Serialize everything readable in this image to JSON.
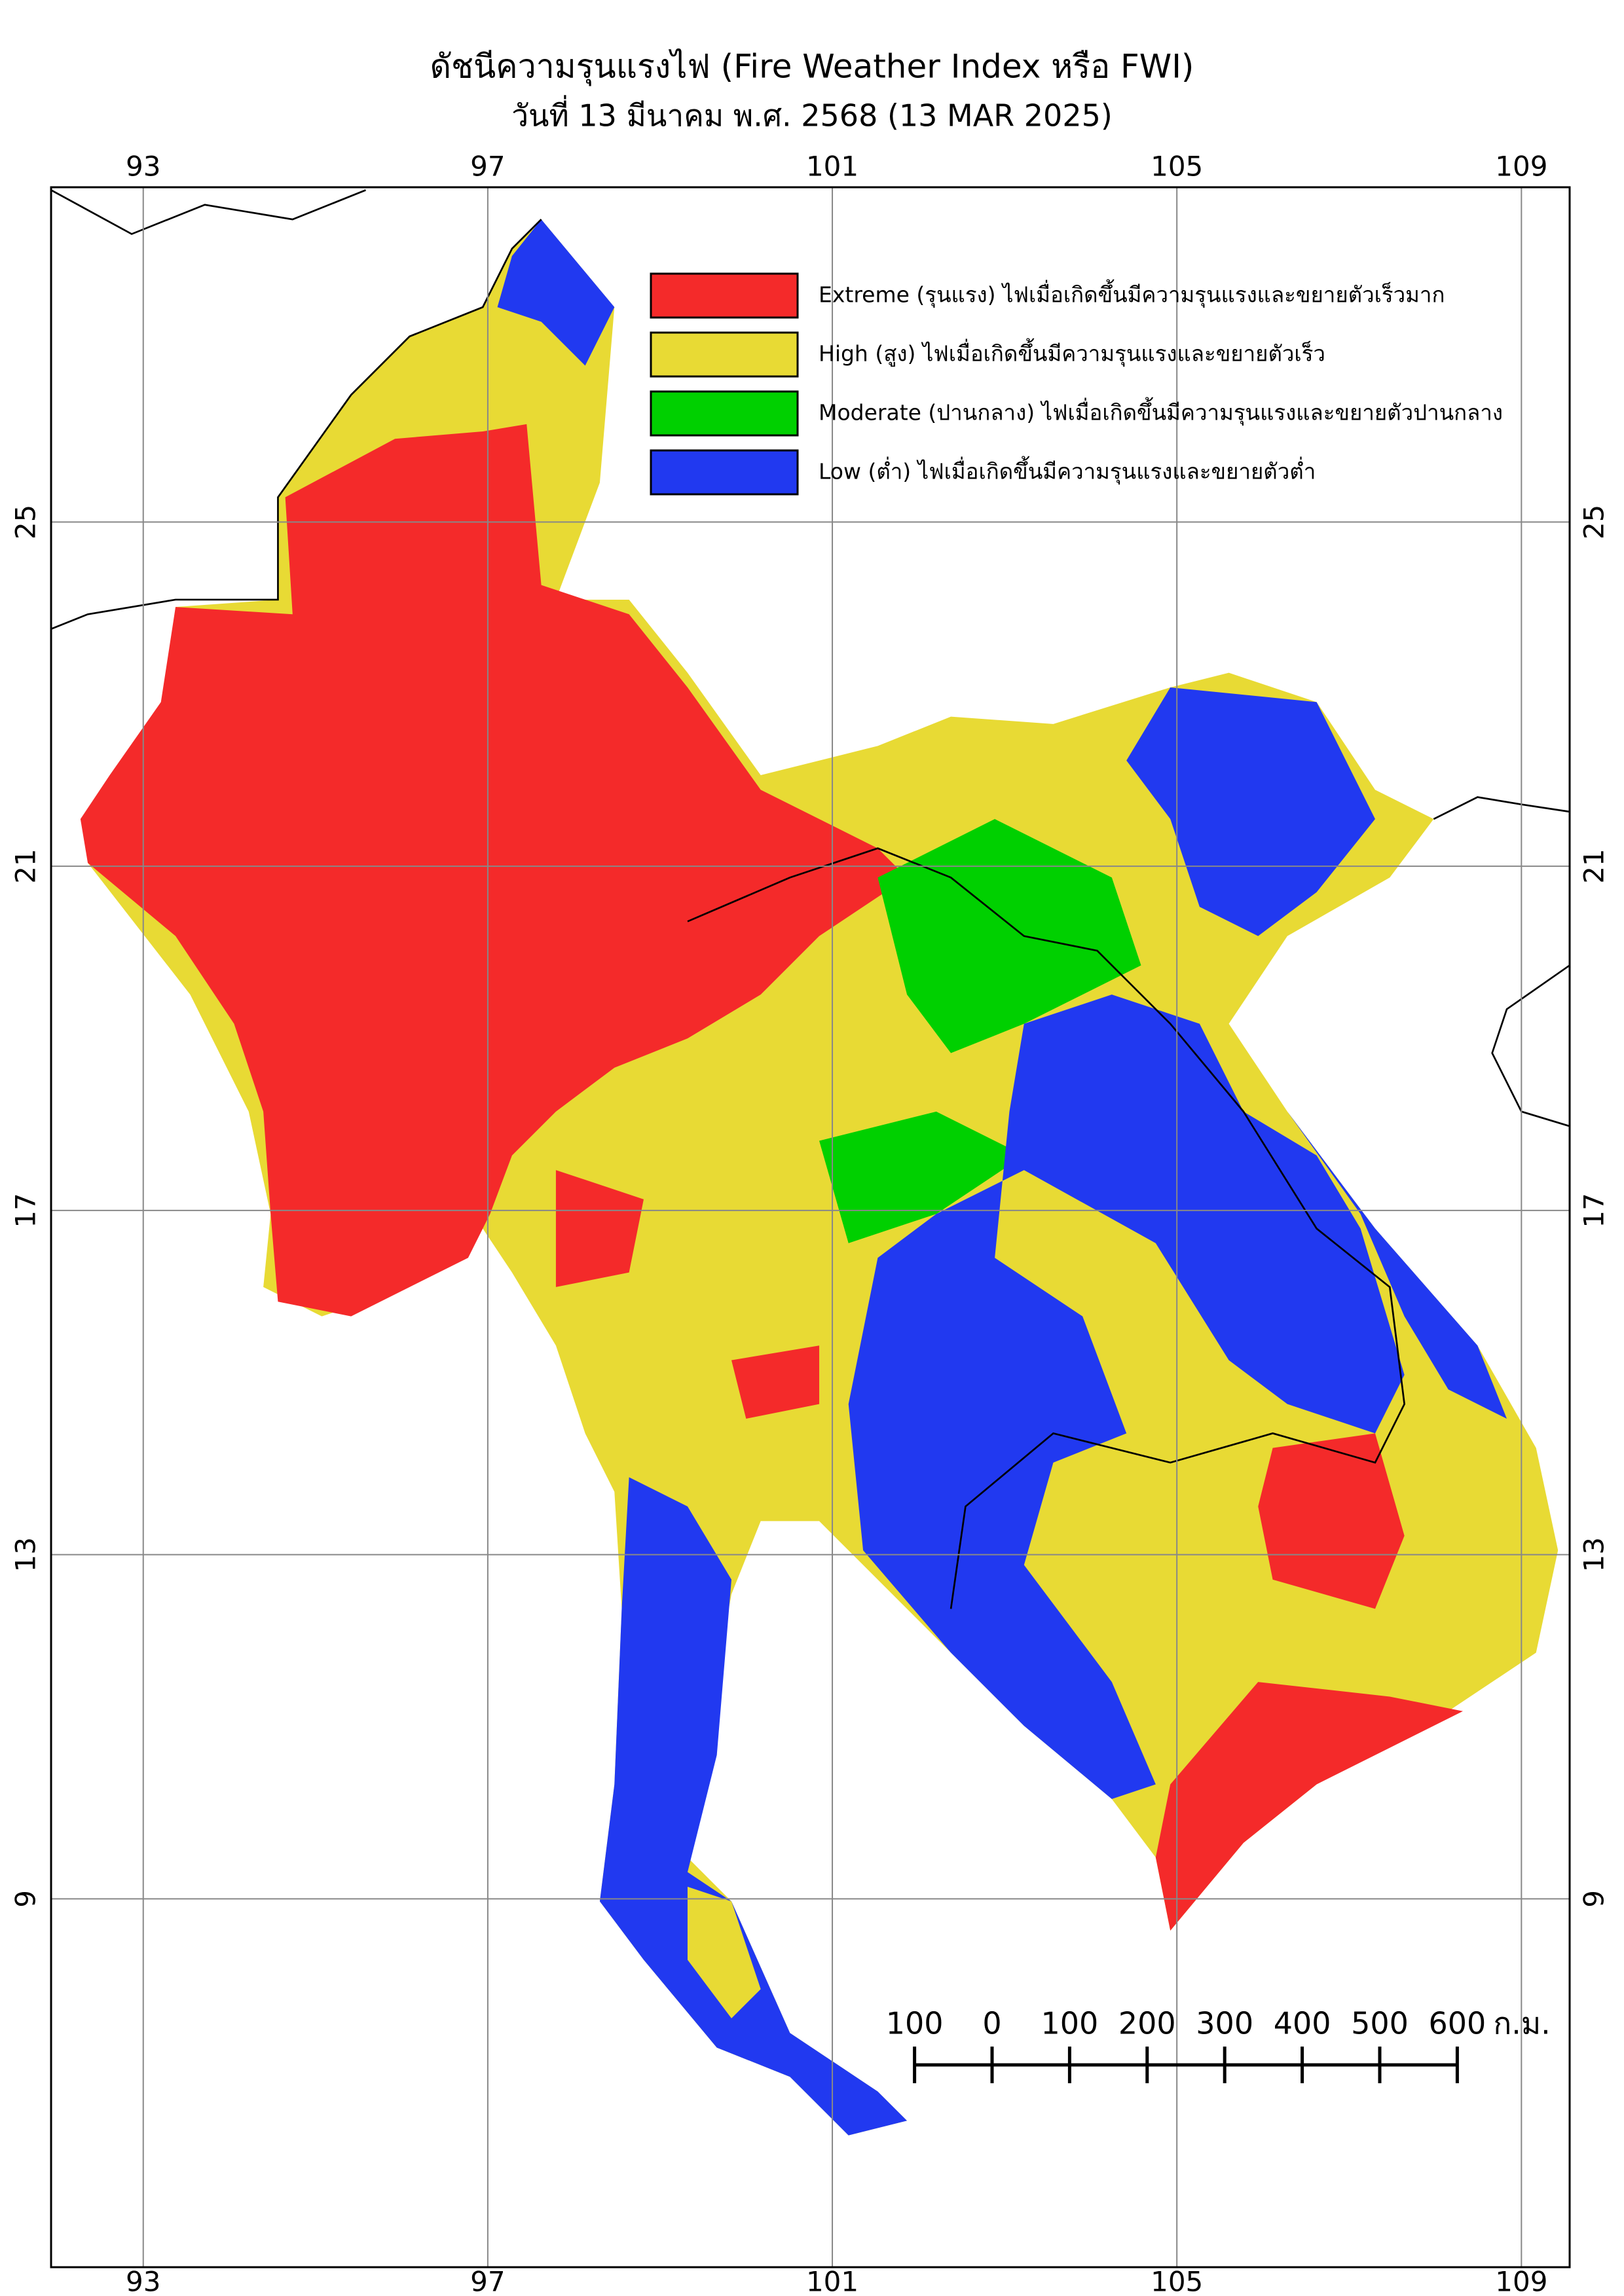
{
  "chart_data": {
    "type": "map",
    "title": "ดัชนีความรุนแรงไฟ (Fire Weather Index หรือ FWI)",
    "subtitle": "วันที่ 13 มีนาคม พ.ศ. 2568 (13 MAR 2025)",
    "xlim": [
      91.93,
      109.56
    ],
    "ylim": [
      4.72,
      28.89
    ],
    "xticks": [
      93,
      97,
      101,
      105,
      109
    ],
    "yticks": [
      25,
      21,
      17,
      13,
      9
    ],
    "grid": true,
    "legend": [
      {
        "label": "Extreme (รุนแรง) ไฟเมื่อเกิดขึ้นมีความรุนแรงและขยายตัวเร็วมาก",
        "color": "#f42a2a"
      },
      {
        "label": "High (สูง) ไฟเมื่อเกิดขึ้นมีความรุนแรงและขยายตัวเร็ว",
        "color": "#e8da34"
      },
      {
        "label": "Moderate (ปานกลาง) ไฟเมื่อเกิดขึ้นมีความรุนแรงและขยายตัวปานกลาง",
        "color": "#00d000"
      },
      {
        "label": "Low (ต่ำ) ไฟเมื่อเกิดขึ้นมีความรุนแรงและขยายตัวต่ำ",
        "color": "#2139f0"
      }
    ],
    "scale_bar": {
      "ticks": [
        {
          "value": -100,
          "label": "100"
        },
        0,
        100,
        200,
        300,
        400,
        500,
        600
      ],
      "unit": "ก.ม."
    }
  }
}
